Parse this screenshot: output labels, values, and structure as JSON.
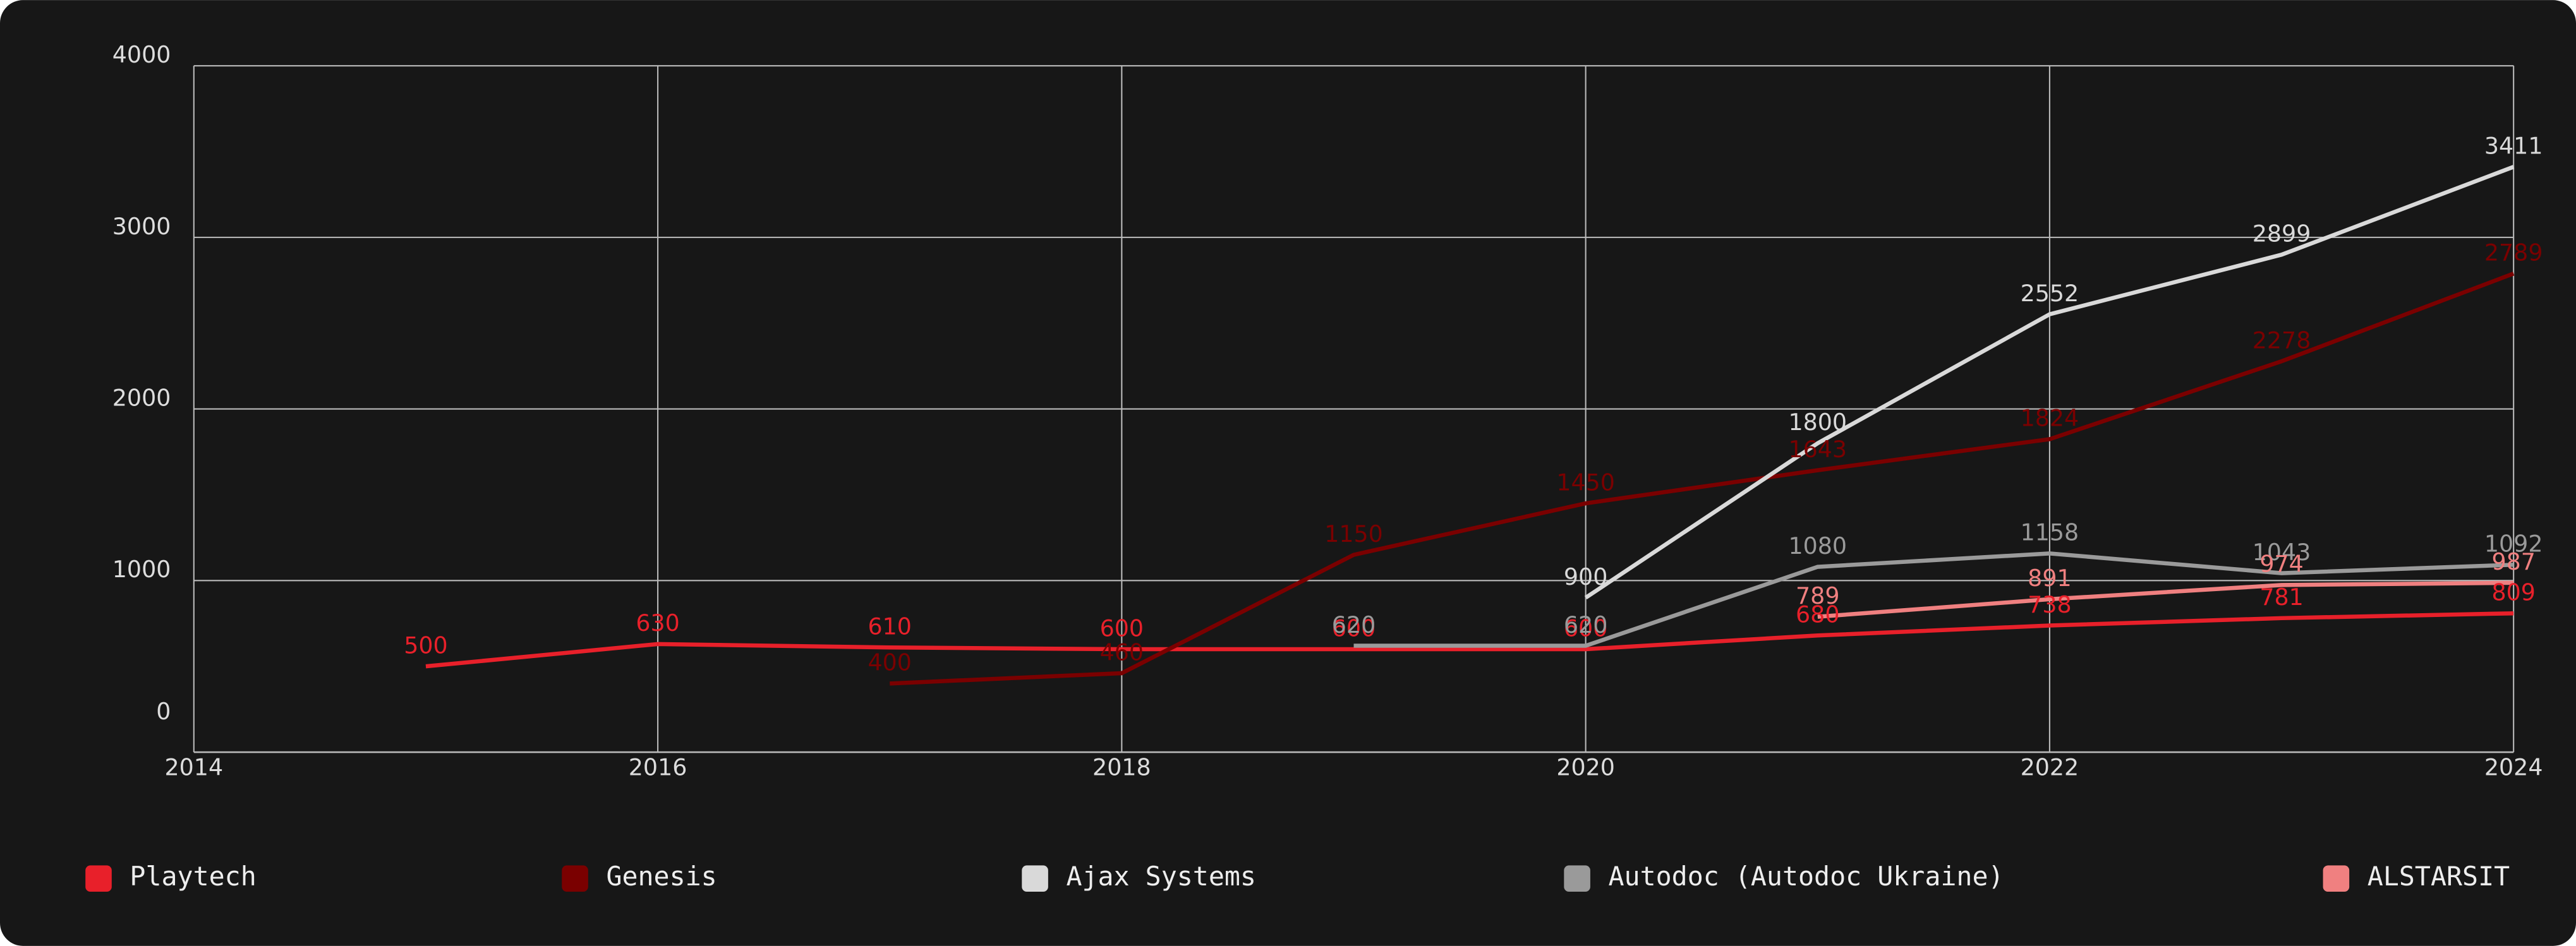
{
  "chart_data": {
    "type": "line",
    "x": [
      2015,
      2016,
      2017,
      2018,
      2019,
      2020,
      2021,
      2022,
      2023,
      2024
    ],
    "series": [
      {
        "name": "Playtech",
        "color": "#e8202a",
        "values": [
          500,
          630,
          610,
          600,
          600,
          600,
          680,
          738,
          781,
          809
        ]
      },
      {
        "name": "Genesis",
        "color": "#7a0000",
        "values": [
          null,
          null,
          400,
          460,
          1150,
          1450,
          1643,
          1824,
          2278,
          2789
        ]
      },
      {
        "name": "Ajax Systems",
        "color": "#d9d9d9",
        "values": [
          null,
          null,
          null,
          null,
          null,
          900,
          1800,
          2552,
          2899,
          3411
        ]
      },
      {
        "name": "Autodoc (Autodoc Ukraine)",
        "color": "#9a9a9a",
        "values": [
          null,
          null,
          null,
          null,
          620,
          620,
          1080,
          1158,
          1043,
          1092
        ]
      },
      {
        "name": "ALSTARSIT",
        "color": "#f08080",
        "values": [
          null,
          null,
          null,
          null,
          null,
          null,
          789,
          891,
          974,
          987
        ]
      }
    ],
    "xlim": [
      2014,
      2024
    ],
    "xticks": [
      2014,
      2016,
      2018,
      2020,
      2022,
      2024
    ],
    "ylim": [
      0,
      4000
    ],
    "yticks": [
      0,
      1000,
      2000,
      3000,
      4000
    ],
    "grid": true,
    "legend": "bottom"
  }
}
